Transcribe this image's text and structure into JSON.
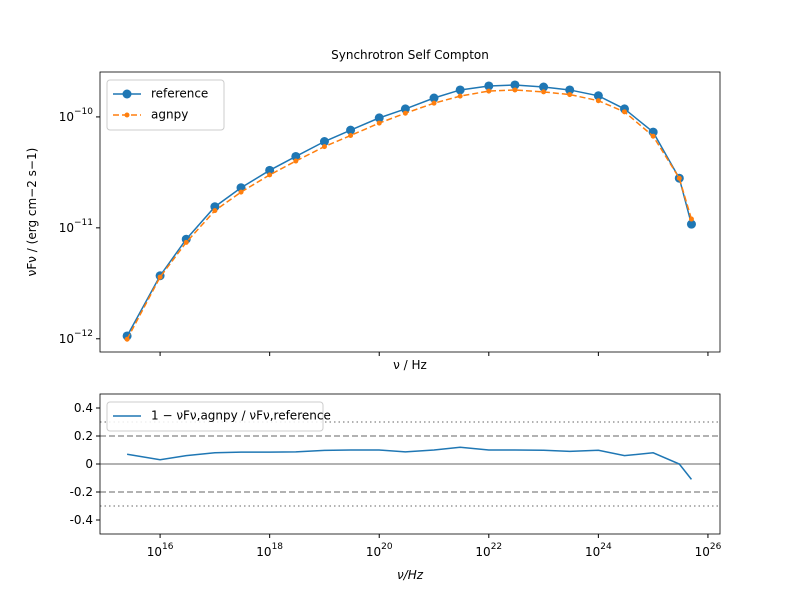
{
  "chart_data": [
    {
      "type": "line",
      "title": "Synchrotron Self Compton",
      "xlabel": "ν / Hz",
      "ylabel": "νFν / (erg cm−2 s−1)",
      "xlog": true,
      "ylog": true,
      "legend": "upper left",
      "show_xtick_labels": false,
      "x": [
        2500000000000000.0,
        1e+16,
        3e+16,
        1e+17,
        3e+17,
        1e+18,
        3e+18,
        1e+19,
        3e+19,
        1e+20,
        3e+20,
        1e+21,
        3e+21,
        1e+22,
        3e+22,
        1e+23,
        3e+23,
        1e+24,
        3e+24,
        1e+25,
        3e+25,
        5e+25
      ],
      "series": [
        {
          "name": "reference",
          "color": "#1f77b4",
          "linestyle": "solid",
          "marker": "o",
          "values": [
            1.06e-12,
            3.7e-12,
            7.9e-12,
            1.55e-11,
            2.3e-11,
            3.3e-11,
            4.4e-11,
            6e-11,
            7.6e-11,
            9.8e-11,
            1.18e-10,
            1.48e-10,
            1.75e-10,
            1.9e-10,
            1.94e-10,
            1.86e-10,
            1.75e-10,
            1.55e-10,
            1.18e-10,
            7.3e-11,
            2.8e-11,
            1.08e-11
          ]
        },
        {
          "name": "agnpy",
          "color": "#ff7f0e",
          "linestyle": "dashed",
          "marker": ".",
          "values": [
            9.9e-13,
            3.6e-12,
            7.4e-12,
            1.43e-11,
            2.1e-11,
            3e-11,
            4e-11,
            5.4e-11,
            6.8e-11,
            8.8e-11,
            1.08e-10,
            1.33e-10,
            1.54e-10,
            1.71e-10,
            1.75e-10,
            1.68e-10,
            1.59e-10,
            1.4e-10,
            1.11e-10,
            6.7e-11,
            2.8e-11,
            1.2e-11
          ]
        }
      ],
      "xlim": [
        800000000000000.0,
        1.66e+26
      ],
      "ylim": [
        7.6e-13,
        2.54e-10
      ],
      "xticks": [
        1e+16,
        1e+18,
        1e+20,
        1e+22,
        1e+24,
        1e+26
      ],
      "yticks": [
        {
          "value": 1e-12,
          "label": "10",
          "exponent": "−12"
        },
        {
          "value": 1e-11,
          "label": "10",
          "exponent": "−11"
        },
        {
          "value": 1e-10,
          "label": "10",
          "exponent": "−10"
        }
      ]
    },
    {
      "type": "line",
      "xlabel": "ν/Hz",
      "xlog": true,
      "ylog": false,
      "legend": "upper left",
      "show_xtick_labels": true,
      "x": [
        2500000000000000.0,
        1e+16,
        3e+16,
        1e+17,
        3e+17,
        1e+18,
        3e+18,
        1e+19,
        3e+19,
        1e+20,
        3e+20,
        1e+21,
        3e+21,
        1e+22,
        3e+22,
        1e+23,
        3e+23,
        1e+24,
        3e+24,
        1e+25,
        3e+25,
        5e+25
      ],
      "series": [
        {
          "name": "1 − νFν,agnpy / νFν,reference",
          "color": "#1f77b4",
          "linestyle": "solid",
          "values": [
            0.07,
            0.03,
            0.06,
            0.08,
            0.085,
            0.085,
            0.087,
            0.097,
            0.1,
            0.1,
            0.087,
            0.1,
            0.12,
            0.1,
            0.1,
            0.098,
            0.09,
            0.098,
            0.06,
            0.08,
            0.0,
            -0.11
          ]
        }
      ],
      "hlines": [
        {
          "y": 0,
          "style": "solid"
        },
        {
          "y": 0.2,
          "style": "dashed"
        },
        {
          "y": -0.2,
          "style": "dashed"
        },
        {
          "y": 0.3,
          "style": "dotted"
        },
        {
          "y": -0.3,
          "style": "dotted"
        }
      ],
      "xlim": [
        800000000000000.0,
        1.66e+26
      ],
      "ylim": [
        -0.5,
        0.5
      ],
      "xticks": [
        {
          "value": 1e+16,
          "label": "10",
          "exponent": "16"
        },
        {
          "value": 1e+18,
          "label": "10",
          "exponent": "18"
        },
        {
          "value": 1e+20,
          "label": "10",
          "exponent": "20"
        },
        {
          "value": 1e+22,
          "label": "10",
          "exponent": "22"
        },
        {
          "value": 1e+24,
          "label": "10",
          "exponent": "24"
        },
        {
          "value": 1e+26,
          "label": "10",
          "exponent": "26"
        }
      ],
      "yticks": [
        -0.4,
        -0.2,
        0.0,
        0.2,
        0.4
      ]
    }
  ]
}
